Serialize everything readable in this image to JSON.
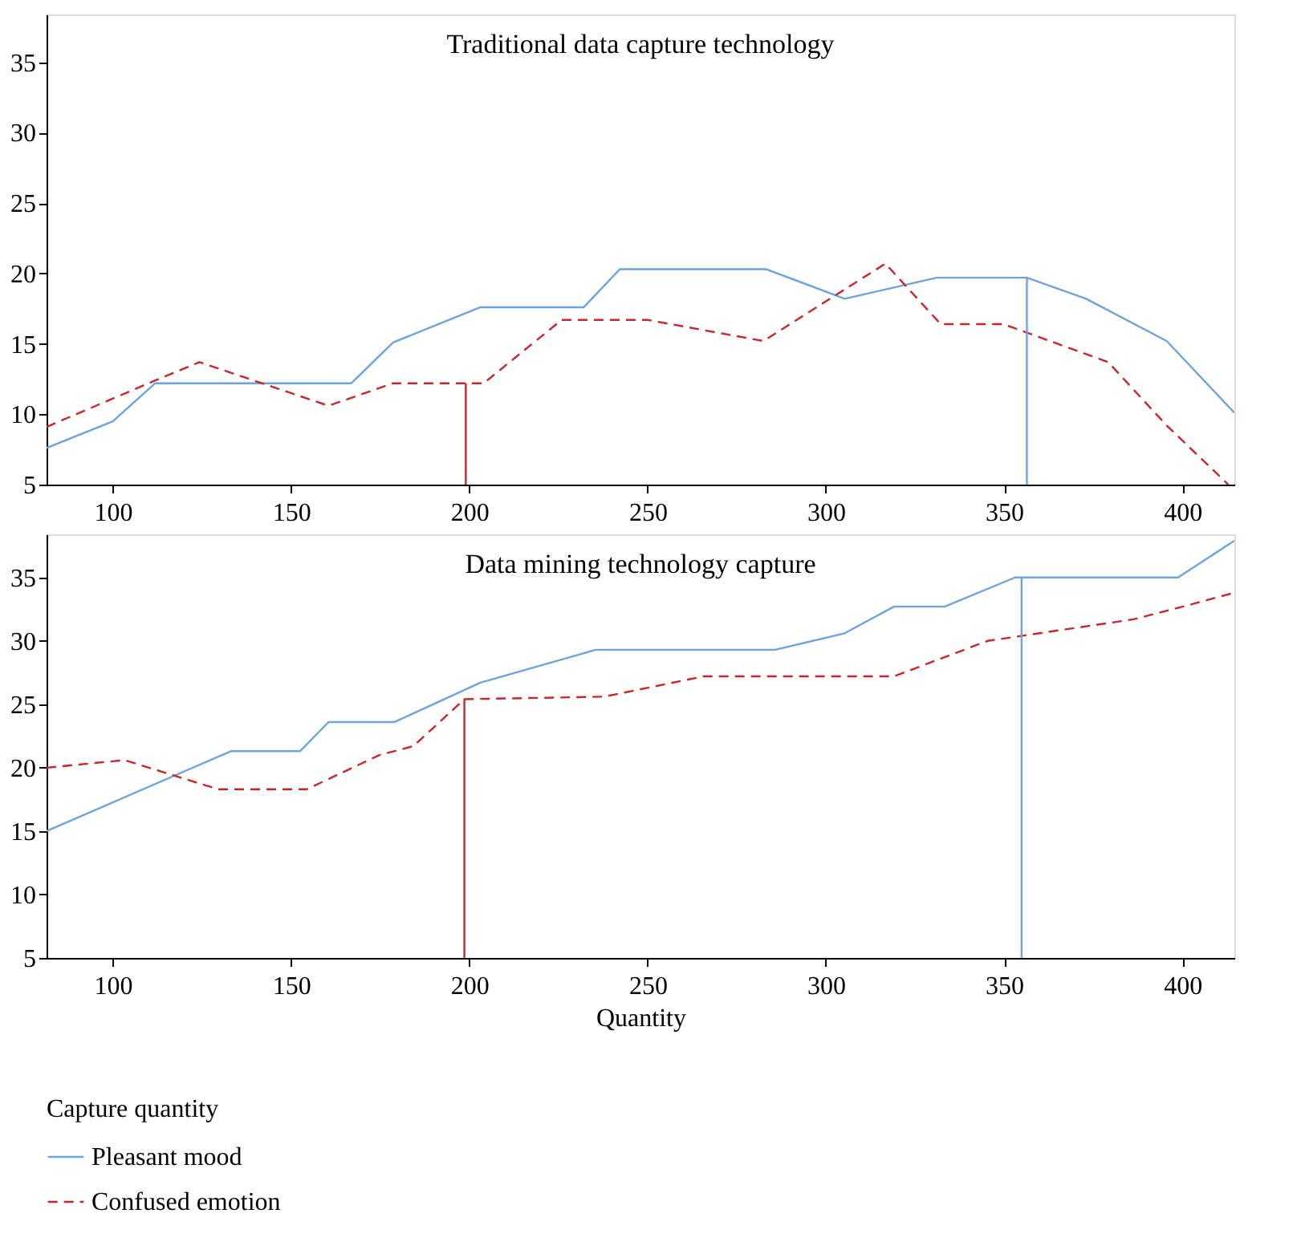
{
  "chart_data": [
    {
      "type": "line",
      "title": "Traditional data capture technology",
      "xlim": [
        81.4,
        414.6
      ],
      "ylim": [
        5,
        38.4
      ],
      "xticks": [
        100,
        150,
        200,
        250,
        300,
        350,
        400
      ],
      "yticks": [
        5,
        10,
        15,
        20,
        25,
        30,
        35
      ],
      "grid": false,
      "legend": "bottom left",
      "series": [
        {
          "name": "Pleasant mood",
          "color": "#6fa3dc",
          "line_style": "solid",
          "x": [
            81.4,
            100,
            111.9,
            166.9,
            178.6,
            203.1,
            232.1,
            242.2,
            283.3,
            305.3,
            331.1,
            356.4,
            373,
            395.6,
            414.6
          ],
          "values": [
            7.6,
            9.5,
            12.2,
            12.2,
            15.1,
            17.6,
            17.6,
            20.3,
            20.3,
            18.2,
            19.7,
            19.7,
            18.2,
            15.2,
            10.1
          ]
        },
        {
          "name": "Confused emotion",
          "color": "#c8262a",
          "line_style": "dashed",
          "x": [
            81.4,
            111.9,
            124.3,
            160.5,
            178.6,
            204.0,
            225.9,
            250,
            282.5,
            316.7,
            332.2,
            349.8,
            379.2,
            395.6,
            412.9
          ],
          "values": [
            9.1,
            12.4,
            13.7,
            10.6,
            12.2,
            12.2,
            16.7,
            16.7,
            15.2,
            20.7,
            16.4,
            16.4,
            13.7,
            9.2,
            5.0
          ]
        },
        {
          "color": "#c8262a",
          "line_style": "solid",
          "x": [
            199,
            199
          ],
          "values": [
            5,
            12.2
          ]
        },
        {
          "color": "#6fa3dc",
          "line_style": "solid",
          "x": [
            356.4,
            356.4
          ],
          "values": [
            5,
            19.7
          ]
        }
      ]
    },
    {
      "type": "line",
      "title": "Data mining technology capture",
      "xlabel": "Quantity",
      "legend_title": "Capture quantity",
      "xlim": [
        81.4,
        414.6
      ],
      "ylim": [
        5,
        38.4
      ],
      "xticks": [
        100,
        150,
        200,
        250,
        300,
        350,
        400
      ],
      "yticks": [
        5,
        10,
        15,
        20,
        25,
        30,
        35
      ],
      "grid": false,
      "legend": "bottom left",
      "series": [
        {
          "name": "Pleasant mood",
          "color": "#6fa3dc",
          "line_style": "solid",
          "x": [
            81.4,
            133.1,
            152.5,
            160.5,
            179.0,
            203.1,
            235.5,
            285.8,
            305.3,
            319.1,
            333.3,
            353.1,
            398.8,
            414.6
          ],
          "values": [
            15.0,
            21.3,
            21.3,
            23.6,
            23.6,
            26.7,
            29.3,
            29.3,
            30.6,
            32.7,
            32.7,
            35.0,
            35.0,
            37.9
          ]
        },
        {
          "name": "Confused emotion",
          "color": "#c8262a",
          "line_style": "dashed",
          "x": [
            81.4,
            103.3,
            129.5,
            154.4,
            174.8,
            184.3,
            198.6,
            237.8,
            265.7,
            319.1,
            345.4,
            386.3,
            398.8,
            414.6
          ],
          "values": [
            20.0,
            20.6,
            18.3,
            18.3,
            21.0,
            21.7,
            25.4,
            25.6,
            27.2,
            27.2,
            30.0,
            31.7,
            32.6,
            33.8
          ]
        },
        {
          "color": "#c8262a",
          "line_style": "solid",
          "x": [
            198.6,
            198.6
          ],
          "values": [
            5,
            25.4
          ]
        },
        {
          "color": "#6fa3dc",
          "line_style": "solid",
          "x": [
            354.9,
            354.9
          ],
          "values": [
            5,
            35.0
          ]
        }
      ]
    }
  ]
}
